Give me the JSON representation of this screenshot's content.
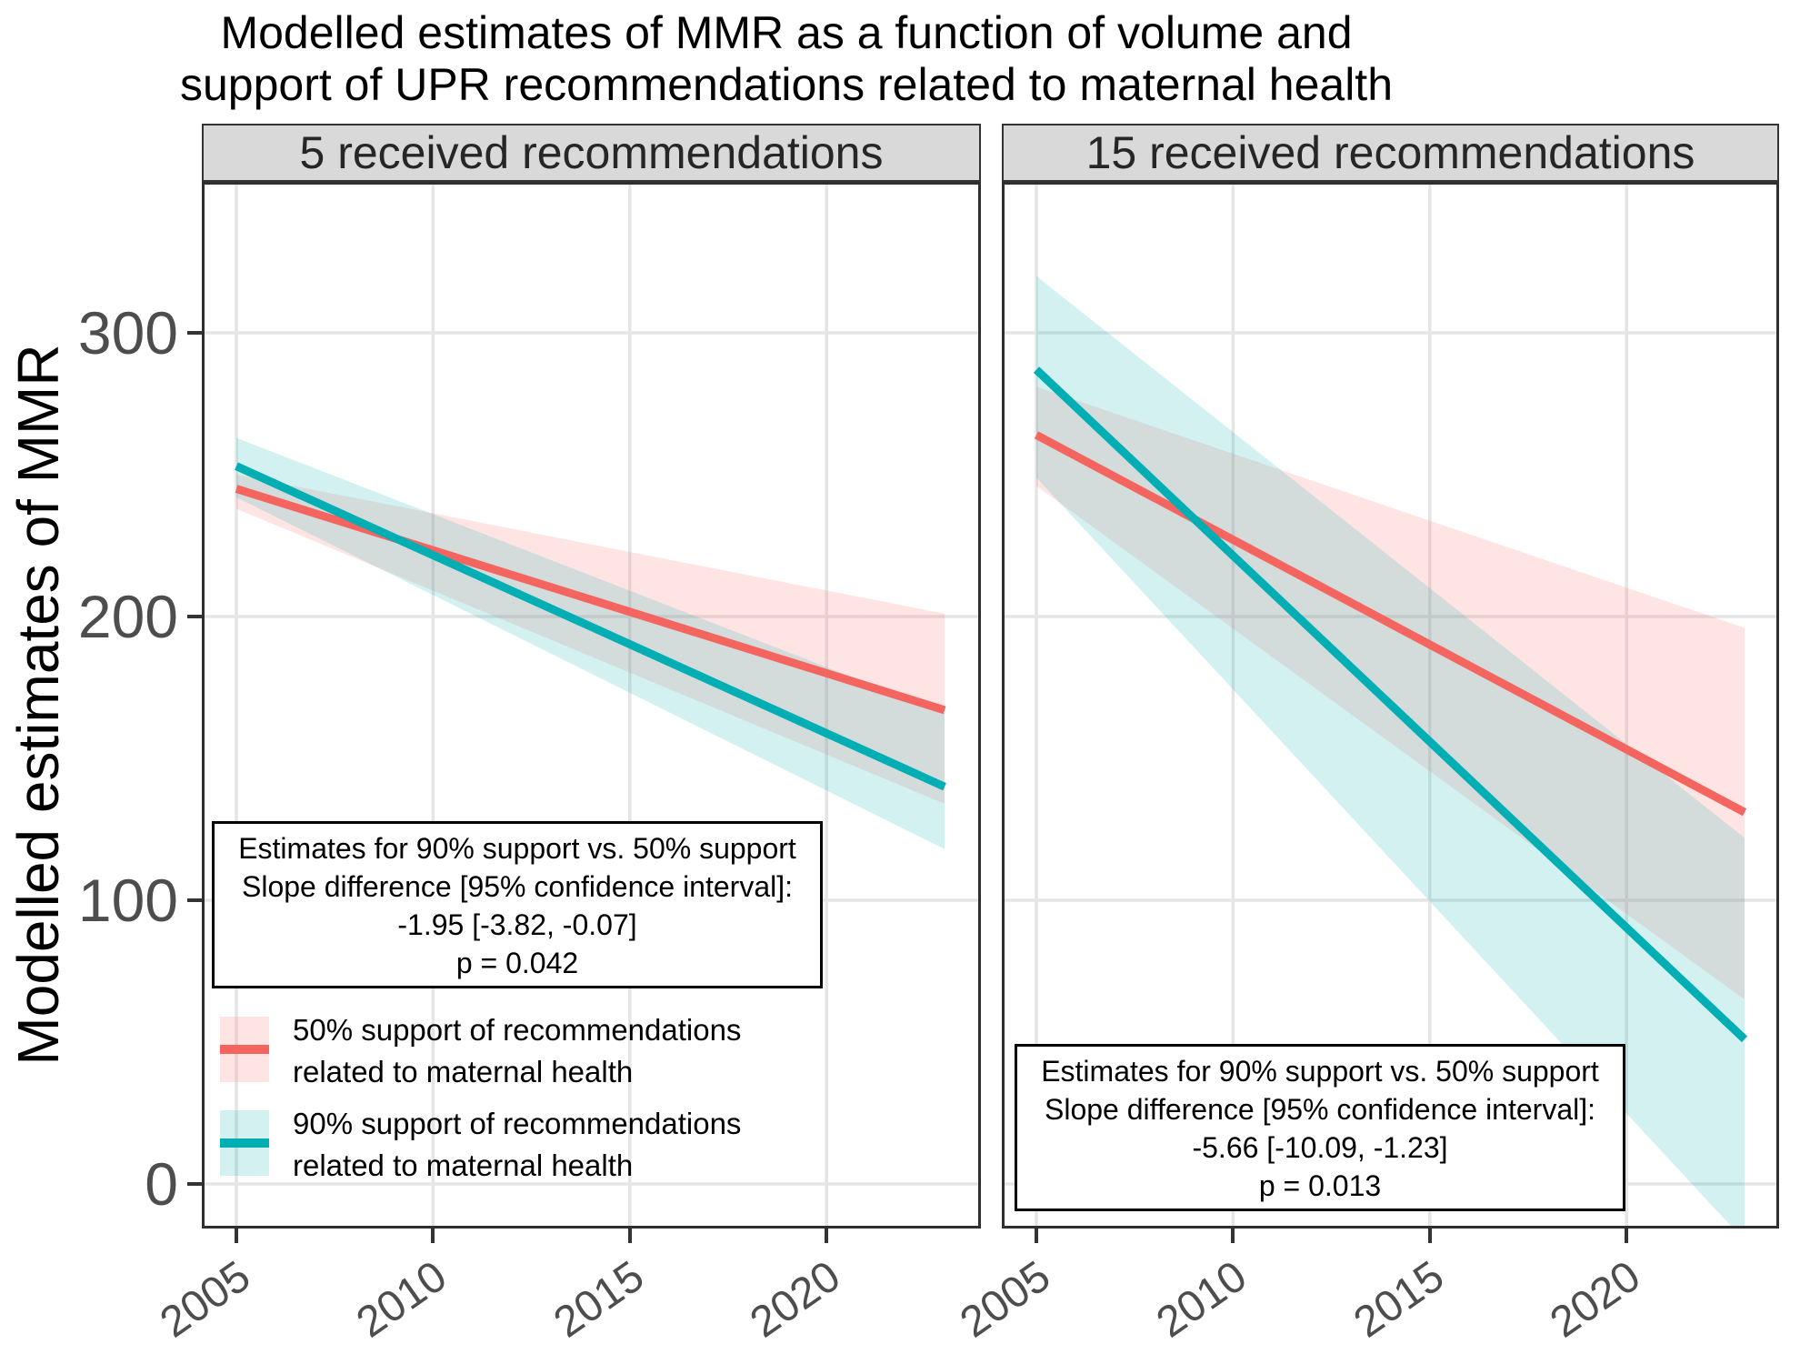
{
  "title": {
    "line1": "Modelled estimates of MMR as a function of volume and",
    "line2": "support of UPR recommendations related to maternal health"
  },
  "y_axis": {
    "title": "Modelled estimates of MMR",
    "ticks": [
      "300",
      "200",
      "100",
      "0"
    ]
  },
  "x_axis": {
    "ticks": [
      "2005",
      "2010",
      "2015",
      "2020"
    ]
  },
  "facets": [
    {
      "label": "5 received recommendations"
    },
    {
      "label": "15 received recommendations"
    }
  ],
  "legend": [
    {
      "line1": "50% support of recommendations",
      "line2": "related to maternal health",
      "color": "#F4655F",
      "fill": "rgba(248,118,109,0.19)"
    },
    {
      "line1": "90% support of recommendations",
      "line2": "related to maternal health",
      "color": "#00AEB3",
      "fill": "rgba(0,174,179,0.17)"
    }
  ],
  "annotations": [
    {
      "lines": [
        "Estimates for 90% support vs. 50% support",
        "Slope difference [95% confidence interval]:",
        "-1.95 [-3.82, -0.07]",
        "p = 0.042"
      ]
    },
    {
      "lines": [
        "Estimates for 90% support vs. 50% support",
        "Slope difference [95% confidence interval]:",
        "-5.66 [-10.09, -1.23]",
        "p = 0.013"
      ]
    }
  ],
  "chart_data": {
    "type": "line",
    "title": "Modelled estimates of MMR as a function of volume and support of UPR recommendations related to maternal health",
    "xlabel": "",
    "ylabel": "Modelled estimates of MMR",
    "x_ticks": [
      2005,
      2010,
      2015,
      2020
    ],
    "y_ticks": [
      0,
      100,
      200,
      300
    ],
    "xlim": [
      2004.1,
      2023.9
    ],
    "ylim": [
      -16,
      353
    ],
    "grid": "major-only",
    "legend_position": "inside-bottom-left-of-first-panel",
    "panels": [
      {
        "facet": "5 received recommendations",
        "slope_difference": -1.95,
        "slope_ci": [
          -3.82,
          -0.07
        ],
        "p_value": 0.042,
        "series": [
          {
            "name": "50% support of recommendations related to maternal health",
            "color": "#F4655F",
            "ci_fill": "rgba(248,118,109,0.19)",
            "x": [
              2005,
              2023
            ],
            "y": [
              245,
              167
            ],
            "ci_lower": [
              238,
              134
            ],
            "ci_upper": [
              250,
              201
            ]
          },
          {
            "name": "90% support of recommendations related to maternal health",
            "color": "#00AEB3",
            "ci_fill": "rgba(0,174,179,0.17)",
            "x": [
              2005,
              2023
            ],
            "y": [
              253,
              140
            ],
            "ci_lower": [
              242,
              118
            ],
            "ci_upper": [
              263,
              166
            ]
          }
        ]
      },
      {
        "facet": "15 received recommendations",
        "slope_difference": -5.66,
        "slope_ci": [
          -10.09,
          -1.23
        ],
        "p_value": 0.013,
        "series": [
          {
            "name": "50% support of recommendations related to maternal health",
            "color": "#F4655F",
            "ci_fill": "rgba(248,118,109,0.19)",
            "x": [
              2005,
              2023
            ],
            "y": [
              264,
              131
            ],
            "ci_lower": [
              246,
              65
            ],
            "ci_upper": [
              281,
              196
            ]
          },
          {
            "name": "90% support of recommendations related to maternal health",
            "color": "#00AEB3",
            "ci_fill": "rgba(0,174,179,0.17)",
            "x": [
              2005,
              2023
            ],
            "y": [
              287,
              51
            ],
            "ci_lower": [
              249,
              -20
            ],
            "ci_upper": [
              320,
              122
            ]
          }
        ]
      }
    ]
  }
}
